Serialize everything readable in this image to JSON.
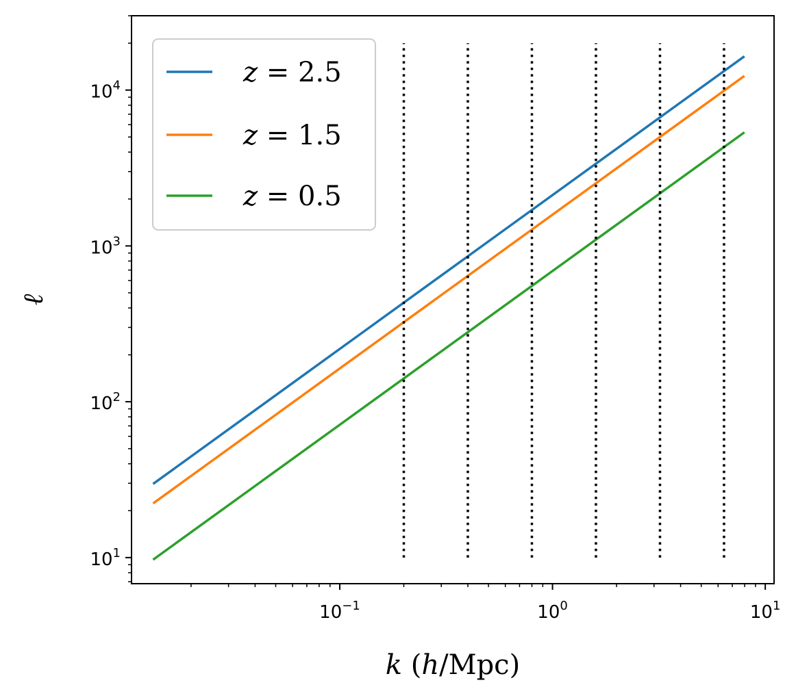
{
  "chart_data": {
    "type": "line",
    "xscale": "log",
    "yscale": "log",
    "xlim": [
      0.0105,
      11.0
    ],
    "ylim": [
      6.8,
      30000
    ],
    "xlabel": "k (h/Mpc)",
    "ylabel": "ℓ",
    "legend_position": "top-left",
    "x_ticks": [
      {
        "value": 0.1,
        "base": "10",
        "exp": "−1"
      },
      {
        "value": 1,
        "base": "10",
        "exp": "0"
      },
      {
        "value": 10,
        "base": "10",
        "exp": "1"
      }
    ],
    "y_ticks": [
      {
        "value": 10,
        "base": "10",
        "exp": "1"
      },
      {
        "value": 100,
        "base": "10",
        "exp": "2"
      },
      {
        "value": 1000,
        "base": "10",
        "exp": "3"
      },
      {
        "value": 10000,
        "base": "10",
        "exp": "4"
      }
    ],
    "series": [
      {
        "name": "z = 2.5",
        "z": "2.5",
        "color": "#1f77b4",
        "x": [
          0.0134,
          7.9
        ],
        "y": [
          30,
          16300
        ]
      },
      {
        "name": "z = 1.5",
        "z": "1.5",
        "color": "#ff7f0e",
        "x": [
          0.0134,
          7.9
        ],
        "y": [
          22.5,
          12200
        ]
      },
      {
        "name": "z = 0.5",
        "z": "0.5",
        "color": "#2ca02c",
        "x": [
          0.0134,
          7.9
        ],
        "y": [
          9.8,
          5300
        ]
      }
    ],
    "vlines": {
      "x": [
        0.2,
        0.4,
        0.8,
        1.6,
        3.2,
        6.4
      ],
      "ymin": 10,
      "ymax": 20000,
      "style": "dotted",
      "color": "#000000"
    }
  }
}
